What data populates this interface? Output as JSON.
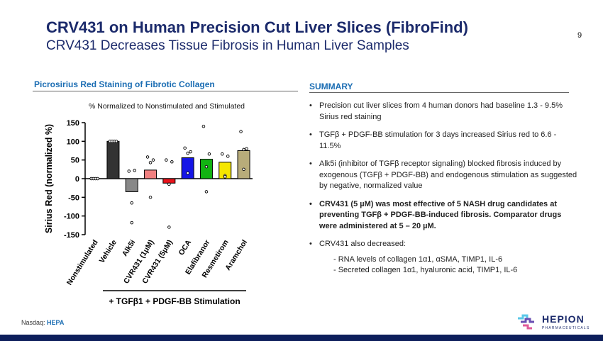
{
  "page": {
    "title": "CRV431 on Human Precision Cut Liver Slices (FibroFind)",
    "subtitle": "CRV431 Decreases Tissue Fibrosis in Human Liver Samples",
    "page_number": "9"
  },
  "left_heading": "Picrosirius Red Staining of Fibrotic Collagen",
  "right_heading": "SUMMARY",
  "summary": {
    "items": [
      "Precision cut liver slices from 4 human donors had baseline 1.3 - 9.5% Sirius red staining",
      "TGFβ + PDGF-BB stimulation for 3 days increased Sirius red to 6.6 - 11.5%",
      "Alk5i (inhibitor of TGFβ receptor signaling) blocked fibrosis induced by exogenous (TGFβ + PDGF-BB) and endogenous stimulation as suggested by negative, normalized value",
      "CRV431 (5 µM) was most effective of 5 NASH drug candidates at preventing TGFβ + PDGF-BB-induced fibrosis. Comparator drugs were administered at 5 – 20 µM.",
      "CRV431 also decreased:"
    ],
    "sub_items": [
      "- RNA levels of collagen 1α1, αSMA, TIMP1, IL-6",
      "- Secreted collagen 1α1, hyaluronic acid, TIMP1, IL-6"
    ]
  },
  "footer": {
    "exchange_label": "Nasdaq:",
    "ticker": "HEPA",
    "logo_text": "HEPION",
    "logo_subtext": "PHARMACEUTICALS"
  },
  "colors": {
    "title": "#1b2a6b",
    "heading": "#1b6db3",
    "bottom_bar": "#0d1e5b"
  },
  "chart_data": {
    "type": "bar",
    "title": "% Normalized to Nonstimulated and Stimulated",
    "ylabel": "Sirius Red  (normalized %)",
    "xlabel": "+ TGFβ1 + PDGF-BB Stimulation",
    "ylim": [
      -150,
      150
    ],
    "yticks": [
      150,
      100,
      50,
      0,
      -50,
      -100,
      -150
    ],
    "grid": false,
    "categories": [
      "Nonstimulated",
      "Vehicle",
      "Alk5i",
      "CVR431 (1μM)",
      "CVR431 (5μM)",
      "OCA",
      "Elafibranor",
      "Resmetirom",
      "Aramchol"
    ],
    "values": [
      0,
      100,
      -35,
      23,
      -12,
      56,
      52,
      44,
      75
    ],
    "colors": [
      "#ffffff",
      "#333333",
      "#888888",
      "#f08080",
      "#e8141c",
      "#1515e6",
      "#12b312",
      "#f5e600",
      "#b8ac7a"
    ],
    "points": [
      [
        0,
        0,
        0,
        0
      ],
      [
        100,
        100,
        100,
        100
      ],
      [
        20,
        22,
        -65,
        -118
      ],
      [
        58,
        50,
        43,
        -50
      ],
      [
        50,
        45,
        -15,
        -130
      ],
      [
        82,
        72,
        68,
        15
      ],
      [
        140,
        66,
        32,
        -35
      ],
      [
        66,
        60,
        8,
        5
      ],
      [
        126,
        80,
        78,
        25
      ]
    ]
  }
}
